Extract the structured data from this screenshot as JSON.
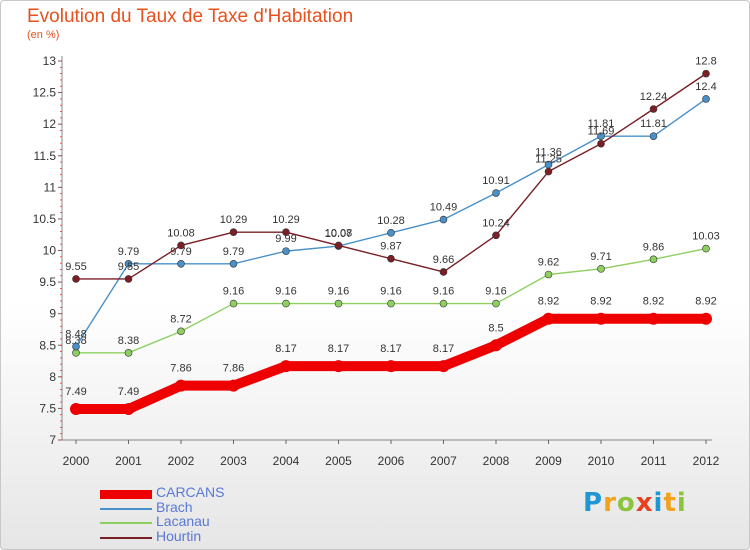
{
  "title": "Evolution du Taux de Taxe d'Habitation",
  "unit_label": "(en %)",
  "logo_text": "Proxiti",
  "chart_data": {
    "type": "line",
    "title": "Evolution du Taux de Taxe d'Habitation",
    "ylabel": "(en %)",
    "x": [
      "2000",
      "2001",
      "2002",
      "2003",
      "2004",
      "2005",
      "2006",
      "2007",
      "2008",
      "2009",
      "2010",
      "2011",
      "2012"
    ],
    "yticks": [
      "7",
      "7.5",
      "8",
      "8.5",
      "9",
      "9.5",
      "10",
      "10.5",
      "11",
      "11.5",
      "12",
      "12.5",
      "13"
    ],
    "ylim": [
      7,
      13
    ],
    "grid": false,
    "legend_position": "bottom-left",
    "series": [
      {
        "name": "CARCANS",
        "color": "#ee0000",
        "values": [
          7.49,
          7.49,
          7.86,
          7.86,
          8.17,
          8.17,
          8.17,
          8.17,
          8.5,
          8.92,
          8.92,
          8.92,
          8.92
        ],
        "labels": [
          "7.49",
          "7.49",
          "7.86",
          "7.86",
          "8.17",
          "8.17",
          "8.17",
          "8.17",
          "8.5",
          "8.92",
          "8.92",
          "8.92",
          "8.92"
        ]
      },
      {
        "name": "Brach",
        "color": "#4a90c8",
        "values": [
          8.48,
          9.79,
          9.79,
          9.79,
          9.99,
          10.07,
          10.28,
          10.49,
          10.91,
          11.36,
          11.81,
          11.81,
          12.4
        ],
        "labels": [
          "8.48",
          "9.79",
          "9.79",
          "9.79",
          "9.99",
          "10.07",
          "10.28",
          "10.49",
          "10.91",
          "11.36",
          "11.81",
          "11.81",
          "12.4"
        ]
      },
      {
        "name": "Lacanau",
        "color": "#8ed060",
        "values": [
          8.38,
          8.38,
          8.72,
          9.16,
          9.16,
          9.16,
          9.16,
          9.16,
          9.16,
          9.62,
          9.71,
          9.86,
          10.03
        ],
        "labels": [
          "8.38",
          "8.38",
          "8.72",
          "9.16",
          "9.16",
          "9.16",
          "9.16",
          "9.16",
          "9.16",
          "9.62",
          "9.71",
          "9.86",
          "10.03"
        ]
      },
      {
        "name": "Hourtin",
        "color": "#7a1f26",
        "values": [
          9.55,
          9.55,
          10.08,
          10.29,
          10.29,
          10.08,
          9.87,
          9.66,
          10.24,
          11.25,
          11.69,
          12.24,
          12.8
        ],
        "labels": [
          "9.55",
          "9.55",
          "10.08",
          "10.29",
          "10.29",
          "10.08",
          "9.87",
          "9.66",
          "10.24",
          "11.25",
          "11.69",
          "12.24",
          "12.8"
        ]
      }
    ]
  }
}
